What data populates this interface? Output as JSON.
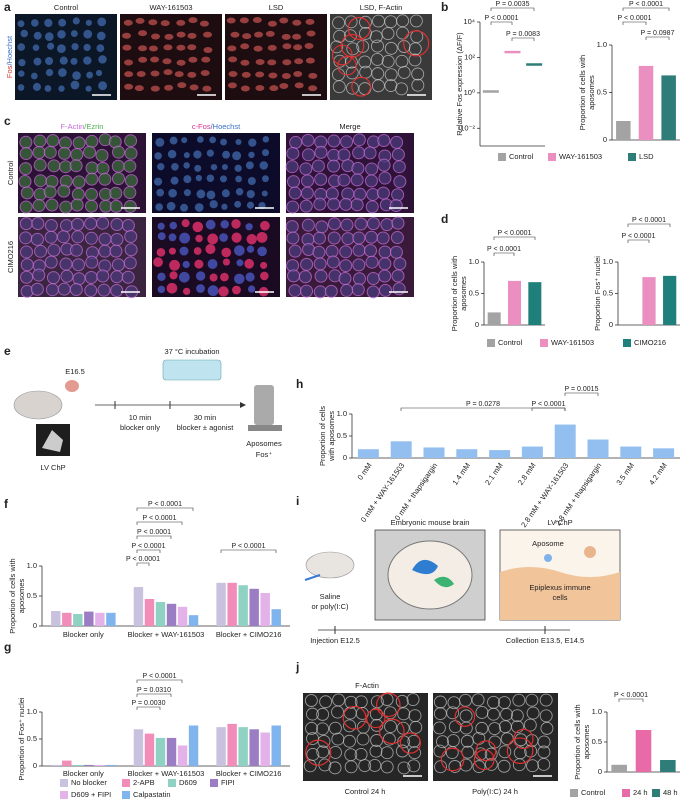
{
  "panel_labels": [
    "a",
    "b",
    "c",
    "d",
    "e",
    "f",
    "g",
    "h",
    "i",
    "j"
  ],
  "panel_a": {
    "stain": [
      "Fos",
      "/Hoechst"
    ],
    "columns": [
      "Control",
      "WAY-161503",
      "LSD",
      "LSD, F-Actin"
    ]
  },
  "panel_c": {
    "columns": [
      [
        "F-Actin",
        "/Ezrin"
      ],
      [
        "c-Fos",
        "/Hoechst"
      ],
      [
        "Merge"
      ]
    ],
    "rows": [
      "Control",
      "CIMO216"
    ]
  },
  "panel_e": {
    "texts": [
      "E16.5",
      "37 °C incubation",
      "10 min",
      "blocker only",
      "30 min",
      "blocker ± agonist",
      "Aposomes",
      "Fos⁺",
      "LV ChP"
    ]
  },
  "panel_i": {
    "texts": [
      "Embryonic mouse brain",
      "LV ChP",
      "Aposome",
      "Epiplexus immune",
      "cells",
      "Saline",
      "or poly(I:C)",
      "Injection E12.5",
      "Collection E13.5, E14.5"
    ]
  },
  "panel_j": {
    "stain": "F-Actin",
    "captions": [
      "Control 24 h",
      "Poly(I:C) 24 h"
    ]
  },
  "chart_data": [
    {
      "type": "strip",
      "ylabel": "Relative Fos expression (ΔF/F)",
      "yscale": "log",
      "categories": [
        "Control",
        "WAY-161503",
        "LSD"
      ],
      "colors": [
        "#a3a3a3",
        "#ea8fc0",
        "#2f7d79"
      ],
      "values": [
        1.2,
        200,
        40
      ],
      "ylim": [
        0.001,
        10000
      ],
      "yticks": [
        {
          "value": 0.01,
          "label": "10⁻²"
        },
        {
          "value": 1,
          "label": "10⁰"
        },
        {
          "value": 100,
          "label": "10²"
        },
        {
          "value": 10000,
          "label": "10⁴"
        }
      ],
      "annotations": [
        "P = 0.0035",
        "P < 0.0001",
        "P = 0.0083"
      ]
    },
    {
      "type": "bar",
      "ylabel": [
        "Proportion of cells with",
        "aposomes"
      ],
      "colors": [
        "#a3a3a3",
        "#ea8fc0",
        "#2f7d79"
      ],
      "values": [
        0.2,
        0.78,
        0.68
      ],
      "ylim": [
        0,
        1
      ],
      "yticks": [
        0,
        0.5,
        {
          "value": 1,
          "label": "1.0"
        }
      ],
      "annotations": [
        "P < 0.0001",
        "P < 0.0001",
        "P = 0.0987"
      ]
    },
    {
      "type": "bar",
      "ylabel": [
        "Proportion of cells with",
        "aposomes"
      ],
      "categories": [
        "Control",
        "WAY-161503",
        "CIMO216"
      ],
      "colors": [
        "#a3a3a3",
        "#ea8fc0",
        "#1f7f7a"
      ],
      "values": [
        0.2,
        0.7,
        0.68
      ],
      "ylim": [
        0,
        1
      ],
      "yticks": [
        0,
        0.5,
        {
          "value": 1,
          "label": "1.0"
        }
      ],
      "annotations": [
        "P < 0.0001",
        "P < 0.0001"
      ]
    },
    {
      "type": "bar",
      "ylabel": "Proportion Fos⁺ nuclei",
      "colors": [
        "#a3a3a3",
        "#ea8fc0",
        "#1f7f7a"
      ],
      "values": [
        0,
        0.76,
        0.78
      ],
      "ylim": [
        0,
        1
      ],
      "yticks": [
        0,
        0.5,
        {
          "value": 1,
          "label": "1.0"
        }
      ],
      "annotations": [
        "P < 0.0001",
        "P < 0.0001"
      ]
    },
    {
      "type": "bar",
      "ylabel": [
        "Proportion of cells",
        "with aposomes"
      ],
      "color": "#93bff0",
      "categories": [
        "0 mM",
        "0 mM + WAY-161503",
        "0 mM + thapsigargin",
        "1.4 mM",
        "2.1 mM",
        "2.8 mM",
        "2.8 mM + WAY-161503",
        "2.8 mM + thapsigargin",
        "3.5 mM",
        "4.2 mM"
      ],
      "values": [
        0.2,
        0.38,
        0.24,
        0.2,
        0.18,
        0.26,
        0.76,
        0.42,
        0.26,
        0.22
      ],
      "ylim": [
        0,
        1
      ],
      "yticks": [
        0,
        0.5,
        {
          "value": 1,
          "label": "1.0"
        }
      ],
      "annotations": [
        "P = 0.0278",
        "P < 0.0001",
        "P = 0.0015"
      ]
    },
    {
      "type": "grouped_bar",
      "ylabel": [
        "Proportion of cells with",
        "aposomes"
      ],
      "categories": [
        "Blocker only",
        "Blocker + WAY-161503",
        "Blocker + CIMO216"
      ],
      "series": [
        {
          "name": "No blocker",
          "color": "#c9c2de",
          "values": [
            0.25,
            0.65,
            0.72
          ]
        },
        {
          "name": "2-APB",
          "color": "#f28cb8",
          "values": [
            0.22,
            0.45,
            0.72
          ]
        },
        {
          "name": "D609",
          "color": "#8fd2c4",
          "values": [
            0.2,
            0.4,
            0.68
          ]
        },
        {
          "name": "FIPI",
          "color": "#9b7dc4",
          "values": [
            0.24,
            0.37,
            0.62
          ]
        },
        {
          "name": "D609 + FIPI",
          "color": "#e2b2e8",
          "values": [
            0.22,
            0.32,
            0.55
          ]
        },
        {
          "name": "Calpastatin",
          "color": "#80b4ec",
          "values": [
            0.22,
            0.18,
            0.28
          ]
        }
      ],
      "ylim": [
        0,
        1
      ],
      "yticks": [
        0,
        0.5,
        {
          "value": 1,
          "label": "1.0"
        }
      ],
      "annotations": [
        "P < 0.0001",
        "P < 0.0001",
        "P < 0.0001",
        "P < 0.0001",
        "P < 0.0001",
        "P < 0.0001"
      ]
    },
    {
      "type": "grouped_bar",
      "ylabel": "Proportion of Fos⁺ nuclei",
      "categories": [
        "Blocker only",
        "Blocker + WAY-161503",
        "Blocker + CIMO216"
      ],
      "series": [
        {
          "color": "#c9c2de",
          "values": [
            0.02,
            0.68,
            0.72
          ]
        },
        {
          "color": "#f28cb8",
          "values": [
            0.1,
            0.6,
            0.78
          ]
        },
        {
          "color": "#8fd2c4",
          "values": [
            0.02,
            0.52,
            0.72
          ]
        },
        {
          "color": "#9b7dc4",
          "values": [
            0.02,
            0.52,
            0.68
          ]
        },
        {
          "color": "#e2b2e8",
          "values": [
            0.02,
            0.38,
            0.62
          ]
        },
        {
          "color": "#80b4ec",
          "values": [
            0.02,
            0.75,
            0.75
          ]
        }
      ],
      "ylim": [
        0,
        1
      ],
      "yticks": [
        0,
        0.5,
        {
          "value": 1,
          "label": "1.0"
        }
      ],
      "annotations": [
        "P < 0.0001",
        "P = 0.0310",
        "P = 0.0030"
      ]
    },
    {
      "type": "bar",
      "ylabel": [
        "Proportion of cells with",
        "aposomes"
      ],
      "categories": [
        "Control",
        "24 h",
        "48 h"
      ],
      "colors": [
        "#a3a3a3",
        "#e86aa6",
        "#2f7d79"
      ],
      "values": [
        0.12,
        0.7,
        0.2
      ],
      "ylim": [
        0,
        1
      ],
      "yticks": [
        0,
        0.5,
        {
          "value": 1,
          "label": "1.0"
        }
      ],
      "annotations": [
        "P < 0.0001"
      ]
    }
  ]
}
